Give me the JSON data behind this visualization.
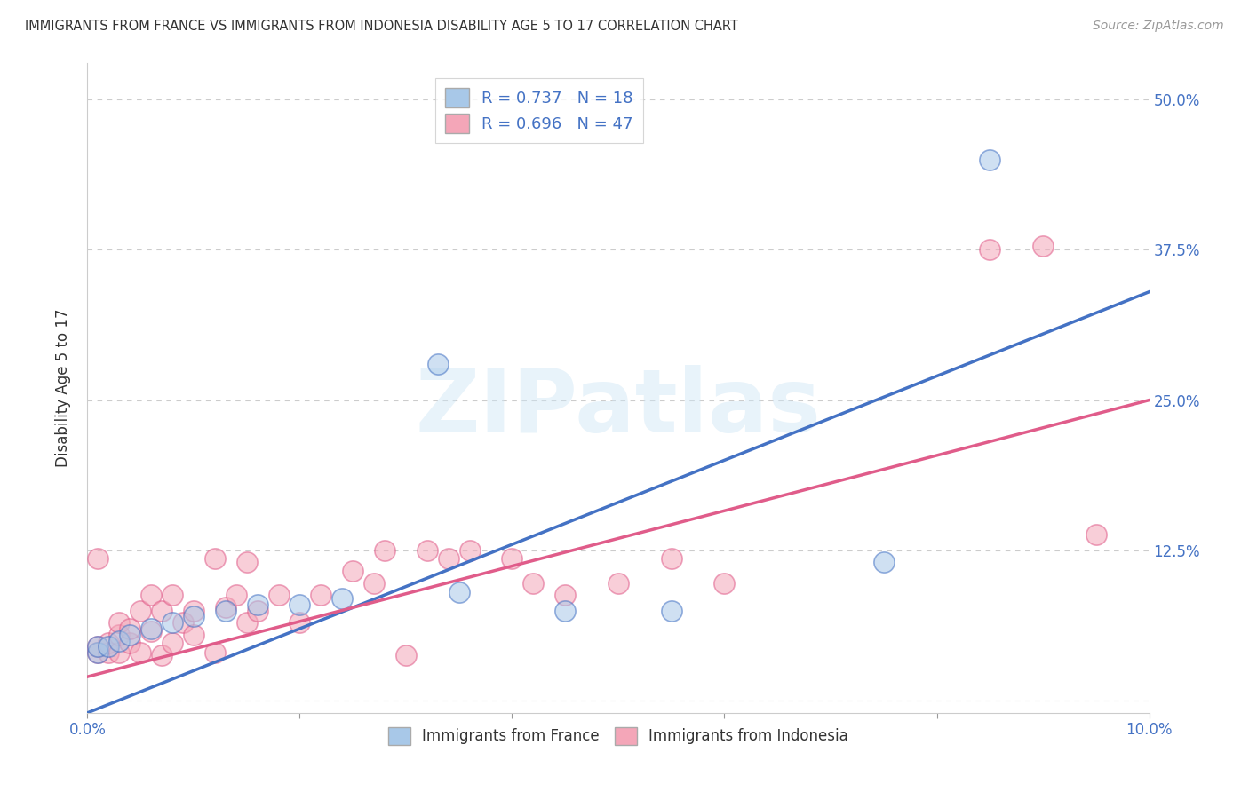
{
  "title": "IMMIGRANTS FROM FRANCE VS IMMIGRANTS FROM INDONESIA DISABILITY AGE 5 TO 17 CORRELATION CHART",
  "source": "Source: ZipAtlas.com",
  "ylabel": "Disability Age 5 to 17",
  "xlim": [
    0.0,
    0.1
  ],
  "ylim": [
    -0.01,
    0.53
  ],
  "yticks": [
    0.0,
    0.125,
    0.25,
    0.375,
    0.5
  ],
  "ytick_labels": [
    "",
    "12.5%",
    "25.0%",
    "37.5%",
    "50.0%"
  ],
  "xticks": [
    0.0,
    0.02,
    0.04,
    0.06,
    0.08,
    0.1
  ],
  "xtick_labels": [
    "0.0%",
    "",
    "",
    "",
    "",
    "10.0%"
  ],
  "france_color": "#a8c8e8",
  "indonesia_color": "#f4a6b8",
  "france_line_color": "#4472c4",
  "indonesia_line_color": "#e05c8a",
  "france_R": 0.737,
  "france_N": 18,
  "indonesia_R": 0.696,
  "indonesia_N": 47,
  "watermark": "ZIPatlas",
  "background_color": "#ffffff",
  "grid_color": "#cccccc",
  "france_points": [
    [
      0.001,
      0.04
    ],
    [
      0.001,
      0.045
    ],
    [
      0.002,
      0.045
    ],
    [
      0.003,
      0.05
    ],
    [
      0.004,
      0.055
    ],
    [
      0.006,
      0.06
    ],
    [
      0.008,
      0.065
    ],
    [
      0.01,
      0.07
    ],
    [
      0.013,
      0.075
    ],
    [
      0.016,
      0.08
    ],
    [
      0.02,
      0.08
    ],
    [
      0.024,
      0.085
    ],
    [
      0.035,
      0.09
    ],
    [
      0.045,
      0.075
    ],
    [
      0.055,
      0.075
    ],
    [
      0.033,
      0.28
    ],
    [
      0.075,
      0.115
    ],
    [
      0.085,
      0.45
    ]
  ],
  "indonesia_points": [
    [
      0.001,
      0.04
    ],
    [
      0.001,
      0.045
    ],
    [
      0.002,
      0.04
    ],
    [
      0.002,
      0.048
    ],
    [
      0.003,
      0.04
    ],
    [
      0.003,
      0.055
    ],
    [
      0.003,
      0.065
    ],
    [
      0.004,
      0.048
    ],
    [
      0.004,
      0.06
    ],
    [
      0.005,
      0.04
    ],
    [
      0.005,
      0.075
    ],
    [
      0.006,
      0.058
    ],
    [
      0.006,
      0.088
    ],
    [
      0.007,
      0.075
    ],
    [
      0.007,
      0.038
    ],
    [
      0.008,
      0.088
    ],
    [
      0.008,
      0.048
    ],
    [
      0.009,
      0.065
    ],
    [
      0.01,
      0.055
    ],
    [
      0.01,
      0.075
    ],
    [
      0.012,
      0.04
    ],
    [
      0.012,
      0.118
    ],
    [
      0.013,
      0.078
    ],
    [
      0.014,
      0.088
    ],
    [
      0.015,
      0.065
    ],
    [
      0.015,
      0.115
    ],
    [
      0.016,
      0.075
    ],
    [
      0.018,
      0.088
    ],
    [
      0.02,
      0.065
    ],
    [
      0.022,
      0.088
    ],
    [
      0.025,
      0.108
    ],
    [
      0.027,
      0.098
    ],
    [
      0.028,
      0.125
    ],
    [
      0.03,
      0.038
    ],
    [
      0.032,
      0.125
    ],
    [
      0.034,
      0.118
    ],
    [
      0.036,
      0.125
    ],
    [
      0.04,
      0.118
    ],
    [
      0.042,
      0.098
    ],
    [
      0.045,
      0.088
    ],
    [
      0.05,
      0.098
    ],
    [
      0.055,
      0.118
    ],
    [
      0.06,
      0.098
    ],
    [
      0.085,
      0.375
    ],
    [
      0.09,
      0.378
    ],
    [
      0.095,
      0.138
    ],
    [
      0.001,
      0.118
    ]
  ],
  "france_line_intercept": -0.01,
  "france_line_slope": 3.5,
  "indonesia_line_intercept": 0.02,
  "indonesia_line_slope": 2.3
}
